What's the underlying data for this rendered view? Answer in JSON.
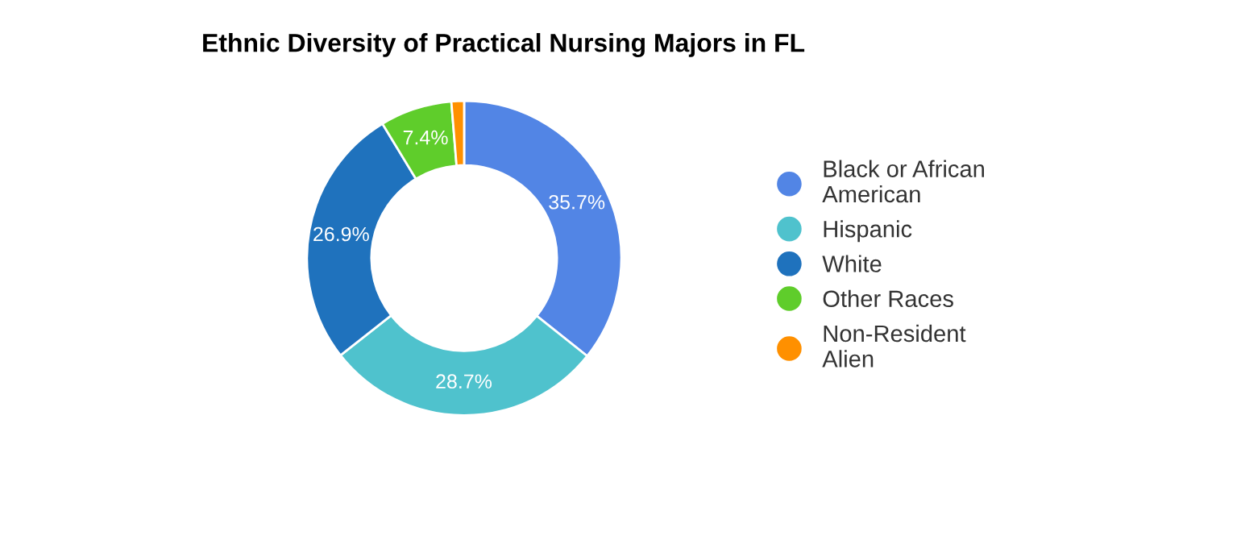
{
  "chart_data": {
    "type": "donut",
    "title": "Ethnic Diversity of Practical Nursing Majors in FL",
    "categories": [
      "Black or African American",
      "Hispanic",
      "White",
      "Other Races",
      "Non-Resident Alien"
    ],
    "values": [
      35.7,
      28.7,
      26.9,
      7.4,
      1.3
    ],
    "colors": [
      "#5285e5",
      "#4fc2cd",
      "#1f72bd",
      "#5fcd2b",
      "#ff9000"
    ],
    "value_labels": [
      "35.7%",
      "28.7%",
      "26.9%",
      "7.4%",
      null
    ],
    "legend": "right"
  }
}
